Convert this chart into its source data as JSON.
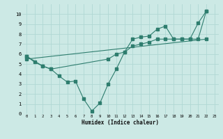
{
  "xlabel": "Humidex (Indice chaleur)",
  "background_color": "#cce9e5",
  "grid_color": "#b0d8d4",
  "line_color": "#2e7d6e",
  "xlim": [
    -0.5,
    23.5
  ],
  "ylim": [
    0,
    11
  ],
  "xticks": [
    0,
    1,
    2,
    3,
    4,
    5,
    6,
    7,
    8,
    9,
    10,
    11,
    12,
    13,
    14,
    15,
    16,
    17,
    18,
    19,
    20,
    21,
    22,
    23
  ],
  "yticks": [
    0,
    1,
    2,
    3,
    4,
    5,
    6,
    7,
    8,
    9,
    10
  ],
  "line1_x": [
    0,
    1,
    2,
    3,
    4,
    5,
    6,
    7,
    8,
    9,
    10,
    11,
    12,
    13,
    14,
    15,
    16,
    17,
    18,
    19,
    20,
    21,
    22
  ],
  "line1_y": [
    5.8,
    5.2,
    4.8,
    4.5,
    3.8,
    3.2,
    3.3,
    1.5,
    0.3,
    1.1,
    3.0,
    4.5,
    6.2,
    7.5,
    7.7,
    7.8,
    8.5,
    8.8,
    7.5,
    7.5,
    7.5,
    9.1,
    10.3
  ],
  "line2_x": [
    0,
    2,
    3,
    10,
    11,
    12,
    13,
    14,
    15,
    16,
    17,
    18,
    19,
    20,
    21,
    22
  ],
  "line2_y": [
    5.8,
    4.8,
    4.5,
    5.5,
    6.0,
    6.2,
    6.8,
    7.0,
    7.2,
    7.5,
    7.5,
    7.5,
    7.5,
    7.5,
    7.5,
    10.3
  ],
  "line3_x": [
    0,
    22
  ],
  "line3_y": [
    5.5,
    7.5
  ]
}
